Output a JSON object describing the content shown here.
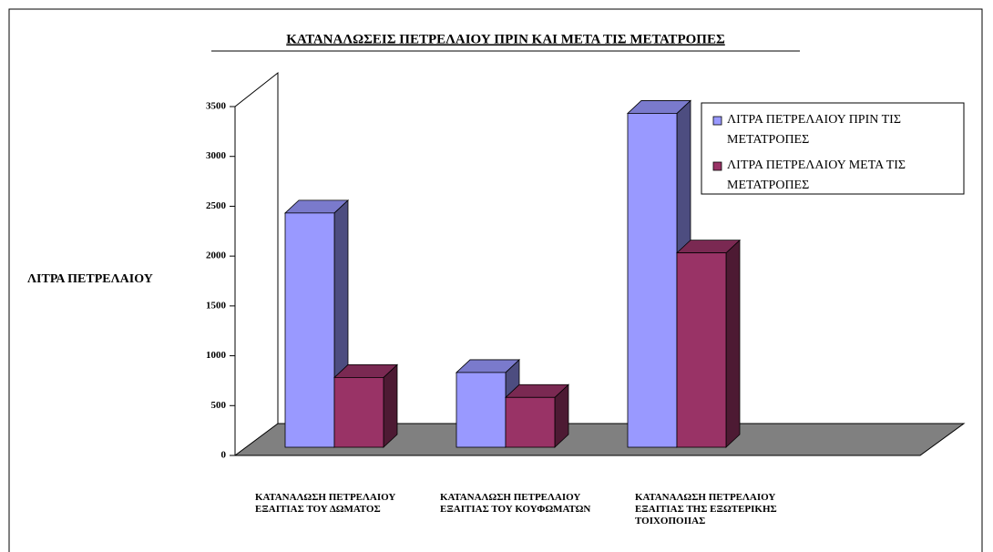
{
  "chart_data": {
    "type": "bar3d",
    "title": "ΚΑΤΑΝΑΛΩΣΕΙΣ ΠΕΤΡΕΛΑΙΟΥ ΠΡΙΝ ΚΑΙ ΜΕΤΑ ΤΙΣ ΜΕΤΑΤΡΟΠΕΣ",
    "y_label": "ΛΙΤΡΑ ΠΕΤΡΕΛΑΙΟΥ",
    "categories": [
      "ΚΑΤΑΝΑΛΩΣΗ ΠΕΤΡΕΛΑΙΟΥ ΕΞΑΙΤΙΑΣ ΤΟΥ ΔΩΜΑΤΟΣ",
      "ΚΑΤΑΝΑΛΩΣΗ ΠΕΤΡΕΛΑΙΟΥ ΕΞΑΙΤΙΑΣ ΤΟΥ ΚΟΥΦΩΜΑΤΩΝ",
      "ΚΑΤΑΝΑΛΩΣΗ ΠΕΤΡΕΛΑΙΟΥ ΕΞΑΙΤΙΑΣ ΤΗΣ ΕΞΩΤΕΡΙΚΗΣ ΤΟΙΧΟΠΟΙΙΑΣ"
    ],
    "series": [
      {
        "name": "ΛΙΤΡΑ ΠΕΤΡΕΛΑΙΟΥ ΠΡΙΝ ΤΙΣ ΜΕΤΑΤΡΟΠΕΣ",
        "color": "#9999ff",
        "values": [
          2350,
          750,
          3350
        ]
      },
      {
        "name": "ΛΙΤΡΑ ΠΕΤΡΕΛΑΙΟΥ ΜΕΤΑ ΤΙΣ ΜΕΤΑΤΡΟΠΕΣ",
        "color": "#993366",
        "values": [
          700,
          500,
          1950
        ]
      }
    ],
    "ylim": [
      0,
      3500
    ],
    "yticks": [
      0,
      500,
      1000,
      1500,
      2000,
      2500,
      3000,
      3500
    ]
  }
}
